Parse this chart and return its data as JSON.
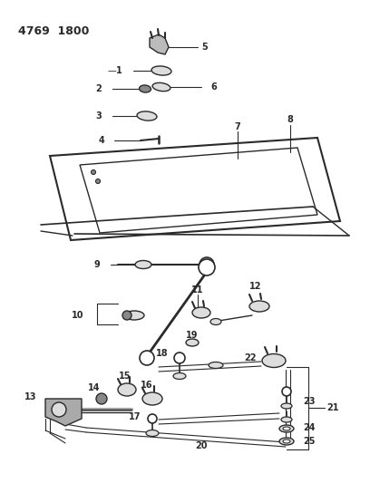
{
  "title": "4769  1800",
  "bg_color": "#ffffff",
  "line_color": "#2a2a2a",
  "fig_width": 4.08,
  "fig_height": 5.33,
  "dpi": 100
}
